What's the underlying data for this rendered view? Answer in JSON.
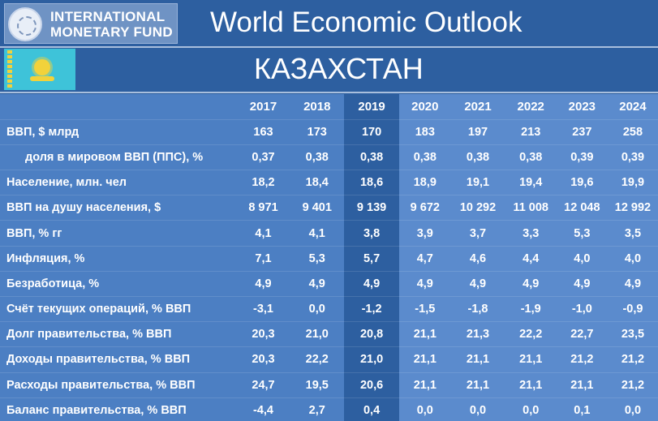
{
  "header": {
    "logo_line1": "INTERNATIONAL",
    "logo_line2": "MONETARY FUND",
    "title": "World Economic Outlook"
  },
  "country": "КАЗАХСТАН",
  "colors": {
    "background": "#2d5fa0",
    "historical_cells": "#4c7fc3",
    "projection_cells": "#5b8bcd",
    "flag_blue": "#3ec3d9",
    "flag_gold": "#f2d23b"
  },
  "table": {
    "years": [
      "2017",
      "2018",
      "2019",
      "2020",
      "2021",
      "2022",
      "2023",
      "2024"
    ],
    "rows": [
      {
        "label": "ВВП, $ млрд",
        "values": [
          "163",
          "173",
          "170",
          "183",
          "197",
          "213",
          "237",
          "258"
        ]
      },
      {
        "label": "доля в мировом ВВП (ППС), %",
        "values": [
          "0,37",
          "0,38",
          "0,38",
          "0,38",
          "0,38",
          "0,38",
          "0,39",
          "0,39"
        ]
      },
      {
        "label": "Население, млн. чел",
        "values": [
          "18,2",
          "18,4",
          "18,6",
          "18,9",
          "19,1",
          "19,4",
          "19,6",
          "19,9"
        ]
      },
      {
        "label": "ВВП на душу населения, $",
        "values": [
          "8 971",
          "9 401",
          "9 139",
          "9 672",
          "10 292",
          "11 008",
          "12 048",
          "12 992"
        ]
      },
      {
        "label": "ВВП, % гг",
        "values": [
          "4,1",
          "4,1",
          "3,8",
          "3,9",
          "3,7",
          "3,3",
          "5,3",
          "3,5"
        ]
      },
      {
        "label": "Инфляция, %",
        "values": [
          "7,1",
          "5,3",
          "5,7",
          "4,7",
          "4,6",
          "4,4",
          "4,0",
          "4,0"
        ]
      },
      {
        "label": "Безработица, %",
        "values": [
          "4,9",
          "4,9",
          "4,9",
          "4,9",
          "4,9",
          "4,9",
          "4,9",
          "4,9"
        ]
      },
      {
        "label": "Счёт текущих операций, % ВВП",
        "values": [
          "-3,1",
          "0,0",
          "-1,2",
          "-1,5",
          "-1,8",
          "-1,9",
          "-1,0",
          "-0,9"
        ]
      },
      {
        "label": "Долг правительства, % ВВП",
        "values": [
          "20,3",
          "21,0",
          "20,8",
          "21,1",
          "21,3",
          "22,2",
          "22,7",
          "23,5"
        ]
      },
      {
        "label": "Доходы правительства, % ВВП",
        "values": [
          "20,3",
          "22,2",
          "21,0",
          "21,1",
          "21,1",
          "21,1",
          "21,2",
          "21,2"
        ]
      },
      {
        "label": "Расходы правительства, % ВВП",
        "values": [
          "24,7",
          "19,5",
          "20,6",
          "21,1",
          "21,1",
          "21,1",
          "21,1",
          "21,2"
        ]
      },
      {
        "label": "Баланс правительства, % ВВП",
        "values": [
          "-4,4",
          "2,7",
          "0,4",
          "0,0",
          "0,0",
          "0,0",
          "0,1",
          "0,0"
        ]
      }
    ]
  }
}
